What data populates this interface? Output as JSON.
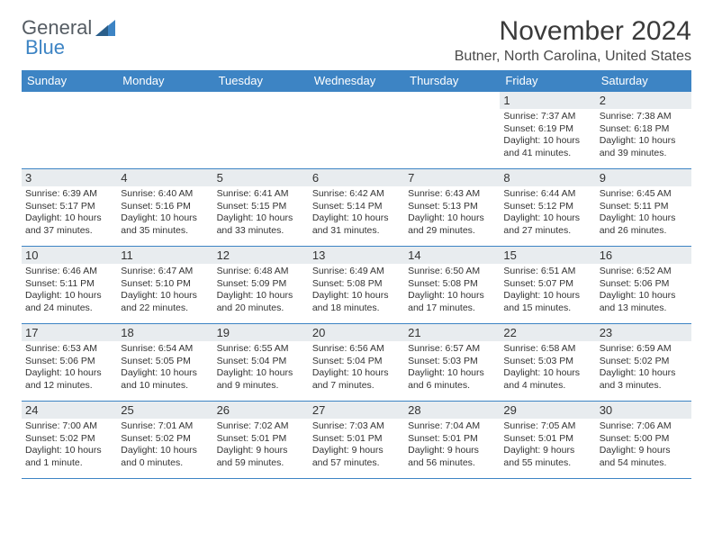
{
  "brand": {
    "part1": "General",
    "part2": "Blue"
  },
  "title": "November 2024",
  "location": "Butner, North Carolina, United States",
  "headers": [
    "Sunday",
    "Monday",
    "Tuesday",
    "Wednesday",
    "Thursday",
    "Friday",
    "Saturday"
  ],
  "colors": {
    "header_bg": "#3d84c4",
    "header_text": "#ffffff",
    "daynum_bg": "#e8ecef",
    "border": "#3d84c4",
    "text": "#333333",
    "brand_gray": "#555c63",
    "brand_blue": "#3d84c4",
    "background": "#ffffff"
  },
  "weeks": [
    [
      {
        "blank": true
      },
      {
        "blank": true
      },
      {
        "blank": true
      },
      {
        "blank": true
      },
      {
        "blank": true
      },
      {
        "day": "1",
        "sunrise": "Sunrise: 7:37 AM",
        "sunset": "Sunset: 6:19 PM",
        "daylight": "Daylight: 10 hours and 41 minutes."
      },
      {
        "day": "2",
        "sunrise": "Sunrise: 7:38 AM",
        "sunset": "Sunset: 6:18 PM",
        "daylight": "Daylight: 10 hours and 39 minutes."
      }
    ],
    [
      {
        "day": "3",
        "sunrise": "Sunrise: 6:39 AM",
        "sunset": "Sunset: 5:17 PM",
        "daylight": "Daylight: 10 hours and 37 minutes."
      },
      {
        "day": "4",
        "sunrise": "Sunrise: 6:40 AM",
        "sunset": "Sunset: 5:16 PM",
        "daylight": "Daylight: 10 hours and 35 minutes."
      },
      {
        "day": "5",
        "sunrise": "Sunrise: 6:41 AM",
        "sunset": "Sunset: 5:15 PM",
        "daylight": "Daylight: 10 hours and 33 minutes."
      },
      {
        "day": "6",
        "sunrise": "Sunrise: 6:42 AM",
        "sunset": "Sunset: 5:14 PM",
        "daylight": "Daylight: 10 hours and 31 minutes."
      },
      {
        "day": "7",
        "sunrise": "Sunrise: 6:43 AM",
        "sunset": "Sunset: 5:13 PM",
        "daylight": "Daylight: 10 hours and 29 minutes."
      },
      {
        "day": "8",
        "sunrise": "Sunrise: 6:44 AM",
        "sunset": "Sunset: 5:12 PM",
        "daylight": "Daylight: 10 hours and 27 minutes."
      },
      {
        "day": "9",
        "sunrise": "Sunrise: 6:45 AM",
        "sunset": "Sunset: 5:11 PM",
        "daylight": "Daylight: 10 hours and 26 minutes."
      }
    ],
    [
      {
        "day": "10",
        "sunrise": "Sunrise: 6:46 AM",
        "sunset": "Sunset: 5:11 PM",
        "daylight": "Daylight: 10 hours and 24 minutes."
      },
      {
        "day": "11",
        "sunrise": "Sunrise: 6:47 AM",
        "sunset": "Sunset: 5:10 PM",
        "daylight": "Daylight: 10 hours and 22 minutes."
      },
      {
        "day": "12",
        "sunrise": "Sunrise: 6:48 AM",
        "sunset": "Sunset: 5:09 PM",
        "daylight": "Daylight: 10 hours and 20 minutes."
      },
      {
        "day": "13",
        "sunrise": "Sunrise: 6:49 AM",
        "sunset": "Sunset: 5:08 PM",
        "daylight": "Daylight: 10 hours and 18 minutes."
      },
      {
        "day": "14",
        "sunrise": "Sunrise: 6:50 AM",
        "sunset": "Sunset: 5:08 PM",
        "daylight": "Daylight: 10 hours and 17 minutes."
      },
      {
        "day": "15",
        "sunrise": "Sunrise: 6:51 AM",
        "sunset": "Sunset: 5:07 PM",
        "daylight": "Daylight: 10 hours and 15 minutes."
      },
      {
        "day": "16",
        "sunrise": "Sunrise: 6:52 AM",
        "sunset": "Sunset: 5:06 PM",
        "daylight": "Daylight: 10 hours and 13 minutes."
      }
    ],
    [
      {
        "day": "17",
        "sunrise": "Sunrise: 6:53 AM",
        "sunset": "Sunset: 5:06 PM",
        "daylight": "Daylight: 10 hours and 12 minutes."
      },
      {
        "day": "18",
        "sunrise": "Sunrise: 6:54 AM",
        "sunset": "Sunset: 5:05 PM",
        "daylight": "Daylight: 10 hours and 10 minutes."
      },
      {
        "day": "19",
        "sunrise": "Sunrise: 6:55 AM",
        "sunset": "Sunset: 5:04 PM",
        "daylight": "Daylight: 10 hours and 9 minutes."
      },
      {
        "day": "20",
        "sunrise": "Sunrise: 6:56 AM",
        "sunset": "Sunset: 5:04 PM",
        "daylight": "Daylight: 10 hours and 7 minutes."
      },
      {
        "day": "21",
        "sunrise": "Sunrise: 6:57 AM",
        "sunset": "Sunset: 5:03 PM",
        "daylight": "Daylight: 10 hours and 6 minutes."
      },
      {
        "day": "22",
        "sunrise": "Sunrise: 6:58 AM",
        "sunset": "Sunset: 5:03 PM",
        "daylight": "Daylight: 10 hours and 4 minutes."
      },
      {
        "day": "23",
        "sunrise": "Sunrise: 6:59 AM",
        "sunset": "Sunset: 5:02 PM",
        "daylight": "Daylight: 10 hours and 3 minutes."
      }
    ],
    [
      {
        "day": "24",
        "sunrise": "Sunrise: 7:00 AM",
        "sunset": "Sunset: 5:02 PM",
        "daylight": "Daylight: 10 hours and 1 minute."
      },
      {
        "day": "25",
        "sunrise": "Sunrise: 7:01 AM",
        "sunset": "Sunset: 5:02 PM",
        "daylight": "Daylight: 10 hours and 0 minutes."
      },
      {
        "day": "26",
        "sunrise": "Sunrise: 7:02 AM",
        "sunset": "Sunset: 5:01 PM",
        "daylight": "Daylight: 9 hours and 59 minutes."
      },
      {
        "day": "27",
        "sunrise": "Sunrise: 7:03 AM",
        "sunset": "Sunset: 5:01 PM",
        "daylight": "Daylight: 9 hours and 57 minutes."
      },
      {
        "day": "28",
        "sunrise": "Sunrise: 7:04 AM",
        "sunset": "Sunset: 5:01 PM",
        "daylight": "Daylight: 9 hours and 56 minutes."
      },
      {
        "day": "29",
        "sunrise": "Sunrise: 7:05 AM",
        "sunset": "Sunset: 5:01 PM",
        "daylight": "Daylight: 9 hours and 55 minutes."
      },
      {
        "day": "30",
        "sunrise": "Sunrise: 7:06 AM",
        "sunset": "Sunset: 5:00 PM",
        "daylight": "Daylight: 9 hours and 54 minutes."
      }
    ]
  ]
}
